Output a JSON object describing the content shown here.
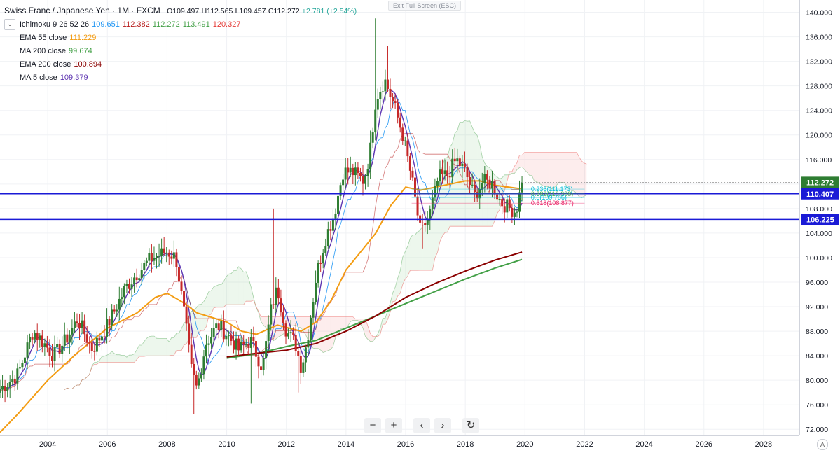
{
  "header": {
    "symbol": "Swiss Franc / Japanese Yen · 1M · FXCM",
    "open": "O109.497",
    "high": "H112.565",
    "low": "L109.457",
    "close": "C112.272",
    "change": "+2.781 (+2.54%)"
  },
  "indicators": [
    {
      "label": "Ichimoku 9 26 52 26",
      "values": [
        {
          "v": "109.651",
          "color": "#2196f3"
        },
        {
          "v": "112.382",
          "color": "#b71c1c"
        },
        {
          "v": "112.272",
          "color": "#43a047"
        },
        {
          "v": "113.491",
          "color": "#43a047"
        },
        {
          "v": "120.327",
          "color": "#e53935"
        }
      ]
    },
    {
      "label": "EMA 55 close",
      "values": [
        {
          "v": "111.229",
          "color": "#f39c12"
        }
      ]
    },
    {
      "label": "MA 200 close",
      "values": [
        {
          "v": "99.674",
          "color": "#43a047"
        }
      ]
    },
    {
      "label": "EMA 200 close",
      "values": [
        {
          "v": "100.894",
          "color": "#8b0000"
        }
      ]
    },
    {
      "label": "MA 5 close",
      "values": [
        {
          "v": "109.379",
          "color": "#5e35b1"
        }
      ]
    }
  ],
  "exit_fullscreen": "Exit Full Screen (ESC)",
  "toolbar": {
    "zoom_out": "−",
    "zoom_in": "+",
    "scroll_left": "‹",
    "scroll_right": "›",
    "reset": "↻"
  },
  "auto_label": "A",
  "colors": {
    "up": "#26a69a",
    "down": "#ef5350",
    "candle_up": "#2e7d32",
    "candle_down": "#c62828",
    "ema55": "#f39c12",
    "ma200": "#43a047",
    "ema200": "#8b0000",
    "ma5": "#5e35b1",
    "tenkan": "#2196f3",
    "kijun": "#b71c1c",
    "hline": "#1a1ad6",
    "fib_pink": "#e91e63"
  },
  "chart_data": {
    "type": "line",
    "ylim": [
      71,
      142
    ],
    "xlim": [
      2002.4,
      2029.2
    ],
    "y_ticks": [
      "72.000",
      "76.000",
      "80.000",
      "84.000",
      "88.000",
      "92.000",
      "96.000",
      "100.000",
      "104.000",
      "108.000",
      "112.000",
      "116.000",
      "120.000",
      "124.000",
      "128.000",
      "132.000",
      "136.000",
      "140.000"
    ],
    "x_ticks": [
      "2004",
      "2006",
      "2008",
      "2010",
      "2012",
      "2014",
      "2016",
      "2018",
      "2020",
      "2022",
      "2024",
      "2026",
      "2028"
    ],
    "price_labels": [
      {
        "value": 112.272,
        "text": "112.272",
        "bg": "#2e7d32"
      },
      {
        "value": 110.407,
        "text": "110.407",
        "bg": "#1a1ad6"
      },
      {
        "value": 106.225,
        "text": "106.225",
        "bg": "#1a1ad6"
      }
    ],
    "horizontal_lines": [
      110.407,
      106.225
    ],
    "fib_levels": [
      {
        "text": "0.236(111.173)",
        "value": 111.173,
        "color": "#00bcd4"
      },
      {
        "text": "0.382(110.398)",
        "value": 110.398,
        "color": "#4caf50"
      },
      {
        "text": "0.5(109.786)",
        "value": 109.786,
        "color": "#00bcd4"
      },
      {
        "text": "0.618(108.877)",
        "value": 108.877,
        "color": "#e91e63"
      }
    ],
    "close_anchors": [
      [
        2002.4,
        78.5
      ],
      [
        2003.0,
        81.0
      ],
      [
        2003.5,
        88.0
      ],
      [
        2003.8,
        86.5
      ],
      [
        2004.2,
        84.0
      ],
      [
        2004.6,
        86.5
      ],
      [
        2005.0,
        90.0
      ],
      [
        2005.5,
        85.0
      ],
      [
        2006.0,
        89.0
      ],
      [
        2006.6,
        95.0
      ],
      [
        2007.0,
        97.5
      ],
      [
        2007.5,
        100.0
      ],
      [
        2008.0,
        101.0
      ],
      [
        2008.3,
        100.0
      ],
      [
        2008.6,
        90.0
      ],
      [
        2008.8,
        82.0
      ],
      [
        2009.0,
        78.5
      ],
      [
        2009.3,
        86.0
      ],
      [
        2009.7,
        89.0
      ],
      [
        2010.0,
        87.5
      ],
      [
        2010.4,
        85.0
      ],
      [
        2010.8,
        86.5
      ],
      [
        2011.2,
        82.0
      ],
      [
        2011.5,
        92.0
      ],
      [
        2011.7,
        95.0
      ],
      [
        2012.0,
        88.0
      ],
      [
        2012.3,
        86.0
      ],
      [
        2012.5,
        82.0
      ],
      [
        2012.7,
        86.5
      ],
      [
        2013.0,
        97.0
      ],
      [
        2013.3,
        103.0
      ],
      [
        2013.6,
        107.0
      ],
      [
        2013.9,
        114.0
      ],
      [
        2014.2,
        114.0
      ],
      [
        2014.6,
        112.5
      ],
      [
        2014.8,
        117.0
      ],
      [
        2015.0,
        126.0
      ],
      [
        2015.3,
        129.0
      ],
      [
        2015.6,
        125.0
      ],
      [
        2015.9,
        120.0
      ],
      [
        2016.2,
        113.0
      ],
      [
        2016.5,
        104.0
      ],
      [
        2016.8,
        107.0
      ],
      [
        2017.1,
        113.0
      ],
      [
        2017.4,
        113.5
      ],
      [
        2017.7,
        116.0
      ],
      [
        2018.0,
        114.0
      ],
      [
        2018.3,
        110.0
      ],
      [
        2018.6,
        112.5
      ],
      [
        2018.9,
        112.0
      ],
      [
        2019.2,
        109.0
      ],
      [
        2019.5,
        108.0
      ],
      [
        2019.7,
        107.5
      ],
      [
        2019.9,
        112.2
      ]
    ],
    "high_spikes": [
      [
        2011.6,
        108.0
      ],
      [
        2015.0,
        139.0
      ],
      [
        2015.4,
        134.5
      ]
    ],
    "low_spikes": [
      [
        2008.9,
        74.5
      ],
      [
        2010.8,
        76.2
      ],
      [
        2012.4,
        78.0
      ],
      [
        2016.6,
        101.5
      ]
    ],
    "series": [
      {
        "name": "EMA 55 close",
        "color": "#f39c12",
        "values": [
          [
            2002.4,
            71.5
          ],
          [
            2003.0,
            74.5
          ],
          [
            2004.0,
            80.0
          ],
          [
            2005.0,
            84.5
          ],
          [
            2006.0,
            88.5
          ],
          [
            2007.0,
            91.0
          ],
          [
            2007.6,
            93.5
          ],
          [
            2008.0,
            94.2
          ],
          [
            2008.6,
            92.5
          ],
          [
            2009.0,
            91.0
          ],
          [
            2010.0,
            89.5
          ],
          [
            2010.5,
            88.0
          ],
          [
            2011.0,
            87.5
          ],
          [
            2011.7,
            89.0
          ],
          [
            2012.5,
            88.0
          ],
          [
            2013.0,
            89.5
          ],
          [
            2013.5,
            93.0
          ],
          [
            2014.0,
            98.0
          ],
          [
            2014.5,
            101.0
          ],
          [
            2015.0,
            104.0
          ],
          [
            2015.5,
            108.5
          ],
          [
            2016.0,
            111.5
          ],
          [
            2016.5,
            111.0
          ],
          [
            2017.0,
            111.5
          ],
          [
            2017.5,
            112.0
          ],
          [
            2018.0,
            112.5
          ],
          [
            2018.5,
            112.5
          ],
          [
            2019.0,
            111.8
          ],
          [
            2019.9,
            111.2
          ]
        ]
      },
      {
        "name": "MA 200 close",
        "color": "#43a047",
        "values": [
          [
            2010.0,
            83.6
          ],
          [
            2011.0,
            84.3
          ],
          [
            2012.0,
            85.5
          ],
          [
            2013.0,
            86.5
          ],
          [
            2014.0,
            88.5
          ],
          [
            2015.0,
            90.5
          ],
          [
            2016.0,
            92.5
          ],
          [
            2017.0,
            94.5
          ],
          [
            2018.0,
            96.5
          ],
          [
            2019.0,
            98.3
          ],
          [
            2019.9,
            99.7
          ]
        ]
      },
      {
        "name": "EMA 200 close",
        "color": "#8b0000",
        "values": [
          [
            2010.0,
            83.8
          ],
          [
            2011.0,
            84.4
          ],
          [
            2012.0,
            84.9
          ],
          [
            2013.0,
            86.0
          ],
          [
            2014.0,
            88.0
          ],
          [
            2015.0,
            90.5
          ],
          [
            2016.0,
            93.5
          ],
          [
            2017.0,
            95.8
          ],
          [
            2018.0,
            97.8
          ],
          [
            2019.0,
            99.6
          ],
          [
            2019.9,
            100.9
          ]
        ]
      }
    ]
  }
}
